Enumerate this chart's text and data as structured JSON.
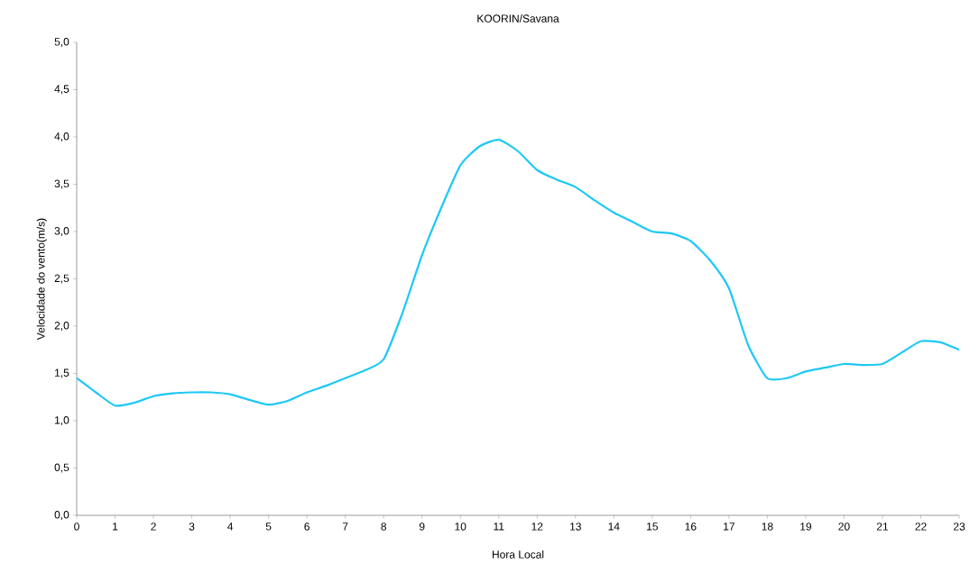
{
  "chart_data": {
    "type": "line",
    "title": "KOORIN/Savana",
    "xlabel": "Hora Local",
    "ylabel": "Velocidade do vento(m/s)",
    "x": [
      0,
      0.5,
      1,
      1.5,
      2,
      2.5,
      3,
      3.5,
      4,
      4.5,
      5,
      5.5,
      6,
      6.5,
      7,
      7.5,
      8,
      8.5,
      9,
      9.5,
      10,
      10.5,
      11,
      11.5,
      12,
      12.5,
      13,
      13.5,
      14,
      14.5,
      15,
      15.5,
      16,
      16.5,
      17,
      17.5,
      18,
      18.5,
      19,
      19.5,
      20,
      20.5,
      21,
      21.5,
      22,
      22.5,
      23
    ],
    "series": [
      {
        "color": "#1ec8f5",
        "values": [
          1.45,
          1.3,
          1.16,
          1.19,
          1.26,
          1.29,
          1.3,
          1.3,
          1.28,
          1.22,
          1.17,
          1.21,
          1.3,
          1.37,
          1.45,
          1.53,
          1.65,
          2.15,
          2.75,
          3.25,
          3.7,
          3.9,
          3.97,
          3.85,
          3.65,
          3.55,
          3.47,
          3.33,
          3.2,
          3.1,
          3.0,
          2.98,
          2.9,
          2.7,
          2.4,
          1.8,
          1.45,
          1.45,
          1.52,
          1.56,
          1.6,
          1.59,
          1.6,
          1.72,
          1.84,
          1.83,
          1.75
        ]
      }
    ],
    "xlim": [
      0,
      23
    ],
    "xticks": [
      0,
      1,
      2,
      3,
      4,
      5,
      6,
      7,
      8,
      9,
      10,
      11,
      12,
      13,
      14,
      15,
      16,
      17,
      18,
      19,
      20,
      21,
      22,
      23
    ],
    "ylim": [
      0,
      5
    ],
    "yticks": [
      {
        "value": 0,
        "label": "0,0"
      },
      {
        "value": 0.5,
        "label": "0,5"
      },
      {
        "value": 1,
        "label": "1,0"
      },
      {
        "value": 1.5,
        "label": "1,5"
      },
      {
        "value": 2,
        "label": "2,0"
      },
      {
        "value": 2.5,
        "label": "2,5"
      },
      {
        "value": 3,
        "label": "3,0"
      },
      {
        "value": 3.5,
        "label": "3,5"
      },
      {
        "value": 4,
        "label": "4,0"
      },
      {
        "value": 4.5,
        "label": "4,5"
      },
      {
        "value": 5,
        "label": "5,0"
      }
    ],
    "grid": false,
    "line_style": "solid"
  }
}
